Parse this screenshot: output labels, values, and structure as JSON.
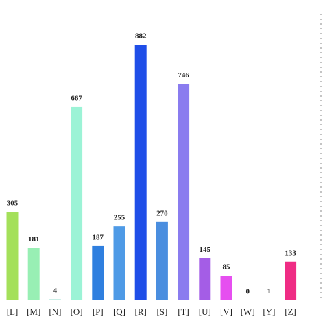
{
  "chart_data": {
    "type": "bar",
    "categories": [
      "[L]",
      "[M]",
      "[N]",
      "[O]",
      "[P]",
      "[Q]",
      "[R]",
      "[S]",
      "[T]",
      "[U]",
      "[V]",
      "[W]",
      "[Y]",
      "[Z]"
    ],
    "values": [
      305,
      181,
      4,
      667,
      187,
      255,
      882,
      270,
      746,
      145,
      85,
      0,
      1,
      133
    ],
    "colors": [
      "#a4e05a",
      "#98efb4",
      "#b4e8dc",
      "#9cf3d6",
      "#2f7fdf",
      "#4e9ae6",
      "#1f4ee8",
      "#4a8edf",
      "#8a7cef",
      "#a45de6",
      "#e64ff0",
      "#cccccc",
      "#cccccc",
      "#ef2c84"
    ]
  }
}
